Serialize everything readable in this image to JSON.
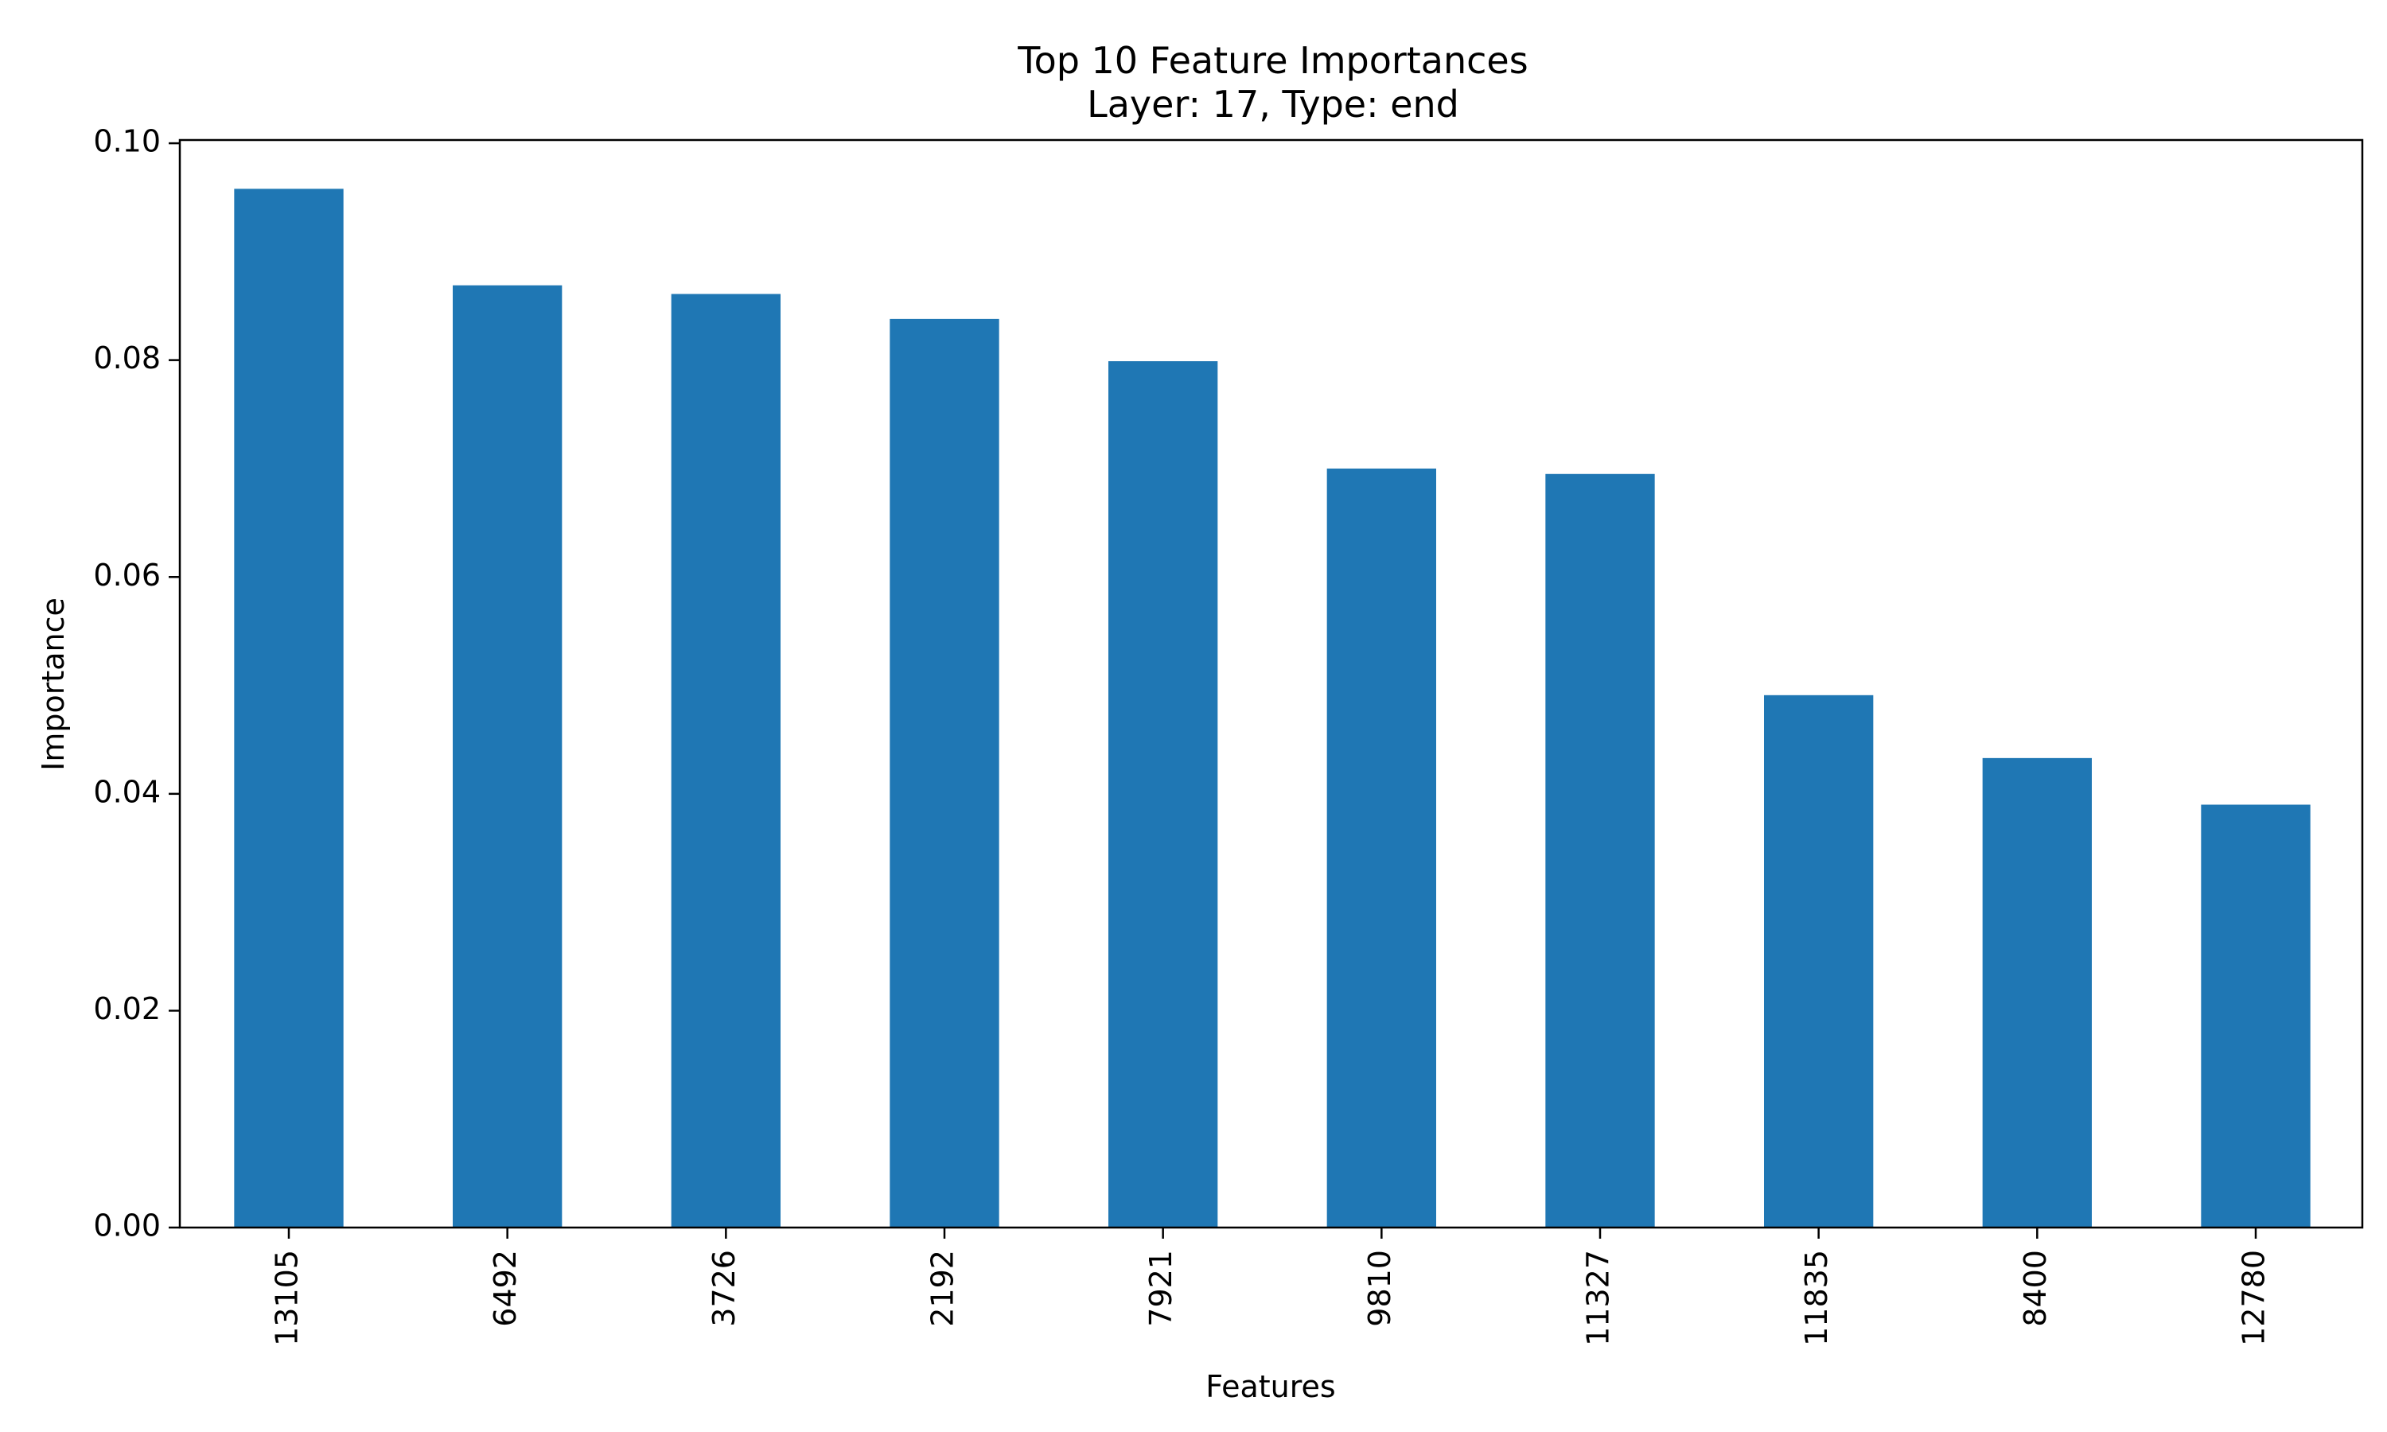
{
  "chart_data": {
    "type": "bar",
    "title": "Top 10 Feature Importances",
    "subtitle": "Layer: 17, Type: end",
    "xlabel": "Features",
    "ylabel": "Importance",
    "categories": [
      "13105",
      "6492",
      "3726",
      "2192",
      "7921",
      "9810",
      "11327",
      "11835",
      "8400",
      "12780"
    ],
    "values": [
      0.0958,
      0.0869,
      0.0861,
      0.0838,
      0.0799,
      0.07,
      0.0695,
      0.0491,
      0.0433,
      0.039
    ],
    "ylim": [
      0,
      0.1003
    ],
    "yticks": [
      "0.00",
      "0.02",
      "0.04",
      "0.06",
      "0.08",
      "0.10"
    ],
    "grid": false,
    "legend": "none",
    "bar_color": "#1f77b4"
  }
}
